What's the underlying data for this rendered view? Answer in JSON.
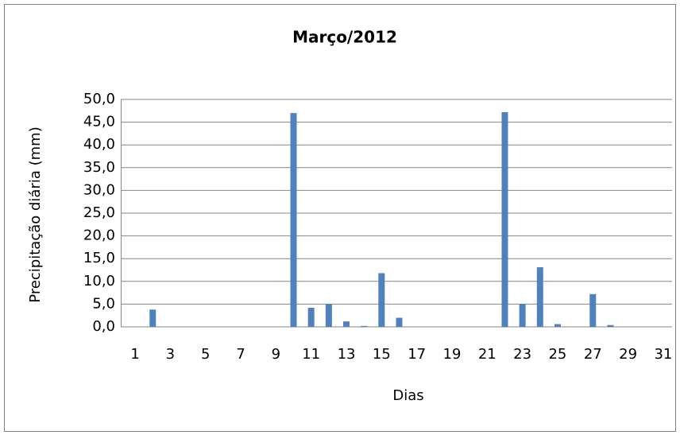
{
  "chart_data": {
    "type": "bar",
    "title": "Março/2012",
    "x_label": "Dias",
    "y_label": "Precipitação diária (mm)",
    "categories": [
      1,
      null,
      3,
      null,
      5,
      null,
      7,
      null,
      9,
      null,
      11,
      null,
      13,
      null,
      15,
      null,
      17,
      null,
      19,
      null,
      21,
      null,
      23,
      null,
      25,
      null,
      27,
      null,
      29,
      null,
      31
    ],
    "values": [
      0,
      3.8,
      0,
      0,
      0,
      0,
      0,
      0,
      0,
      47.0,
      4.2,
      5.0,
      1.2,
      0.2,
      11.8,
      2.0,
      0,
      0,
      0,
      0,
      0,
      47.2,
      5.0,
      13.1,
      0.6,
      0,
      7.2,
      0.4,
      0,
      0,
      0
    ],
    "color": "#4f81bd",
    "ylim": [
      0,
      50
    ],
    "yticks": [
      {
        "value": 0,
        "label": "0,0"
      },
      {
        "value": 5,
        "label": "5,0"
      },
      {
        "value": 10,
        "label": "10,0"
      },
      {
        "value": 15,
        "label": "15,0"
      },
      {
        "value": 20,
        "label": "20,0"
      },
      {
        "value": 25,
        "label": "25,0"
      },
      {
        "value": 30,
        "label": "30,0"
      },
      {
        "value": 35,
        "label": "35,0"
      },
      {
        "value": 40,
        "label": "40,0"
      },
      {
        "value": 45,
        "label": "45,0"
      },
      {
        "value": 50,
        "label": "50,0"
      }
    ],
    "grid": true
  }
}
